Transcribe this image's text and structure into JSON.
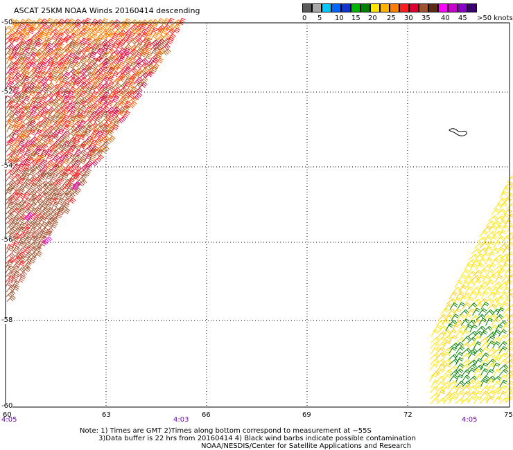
{
  "title": "ASCAT 25KM NOAA Winds 20160414 descending",
  "legend": {
    "labels": [
      "0",
      "5",
      "10",
      "15",
      "20",
      "25",
      "30",
      "35",
      "40",
      "45",
      ">50 knots"
    ],
    "colors": [
      "#5a5a5a",
      "#a9a9a9",
      "#00c8f8",
      "#0066ff",
      "#1034cc",
      "#00b400",
      "#008000",
      "#ffe600",
      "#ffb300",
      "#ff7f00",
      "#ff1c1c",
      "#dd0033",
      "#a0522d",
      "#5a2a12",
      "#ff00ff",
      "#cc00cc",
      "#8a00c8",
      "#3d0070"
    ]
  },
  "axes": {
    "lat_labels": [
      "-50",
      "-52",
      "-54",
      "-56",
      "-58",
      "-60"
    ],
    "lon_labels": [
      "60",
      "63",
      "66",
      "69",
      "72",
      "75"
    ]
  },
  "times": [
    "4:05",
    "4:03",
    "4:05"
  ],
  "notes": [
    "Note: 1) Times are GMT 2)Times along bottom correspond to measurement at −55S",
    "3)Data buffer is 22 hrs from 20160414 4) Black wind barbs indicate possible contamination",
    "NOAA/NESDIS/Center for Satellite Applications and Research"
  ],
  "swaths": [
    {
      "name": "west-swath",
      "speed_range_knots": [
        30,
        45
      ],
      "dominant_colors": [
        "#ff2020",
        "#e6004c",
        "#cc6600",
        "#a0522d"
      ]
    },
    {
      "name": "east-swath",
      "speed_range_knots": [
        15,
        25
      ],
      "dominant_colors": [
        "#ffe600",
        "#ffd000",
        "#00a000"
      ]
    }
  ],
  "contamination_feature_color": "#000000"
}
